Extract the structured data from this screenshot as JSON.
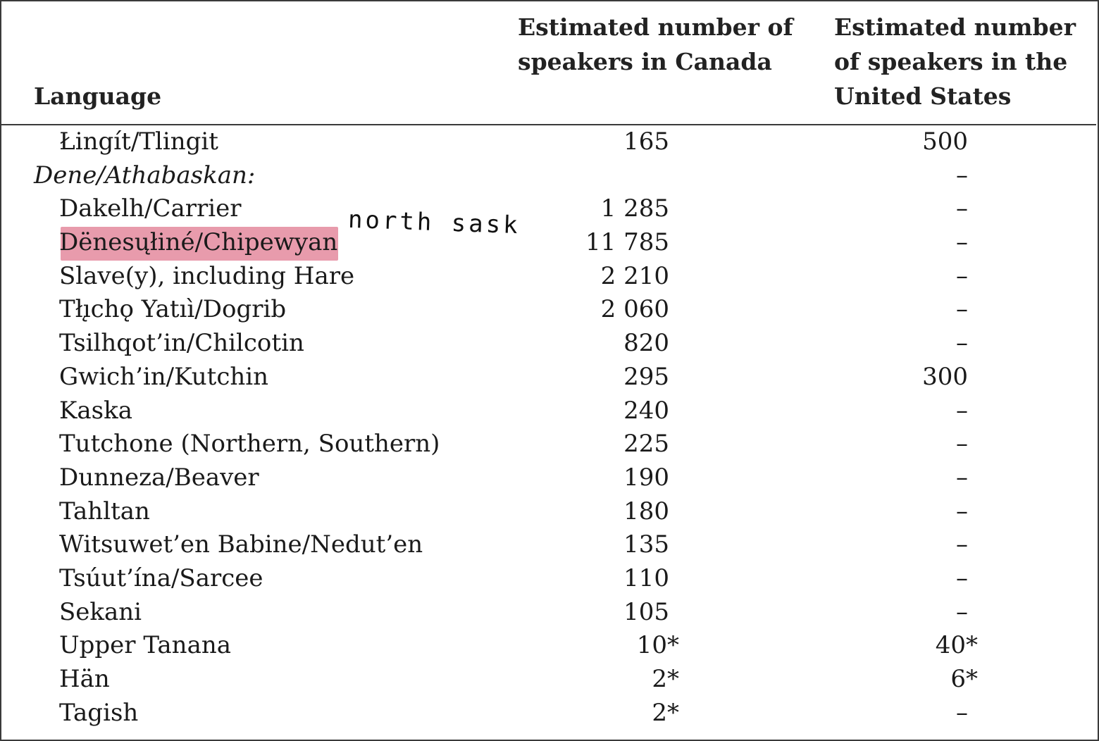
{
  "headers": {
    "language": "Language",
    "canada": "Estimated number of speakers in Canada",
    "us": "Estimated number of speakers in the United States"
  },
  "rows": [
    {
      "language": "Łingít/Tlingit",
      "canada": "165",
      "us": "500",
      "group": false
    },
    {
      "language": "Dene/Athabaskan:",
      "canada": "",
      "us": "–",
      "group": true
    },
    {
      "language": "Dakelh/Carrier",
      "canada": "1 285",
      "us": "–",
      "group": false
    },
    {
      "language": "Dënesųłiné/Chipewyan",
      "canada": "11 785",
      "us": "–",
      "group": false
    },
    {
      "language": "Slave(y), including Hare",
      "canada": "2 210",
      "us": "–",
      "group": false
    },
    {
      "language": "Tłı̨chǫ Yatıì/Dogrib",
      "canada": "2 060",
      "us": "–",
      "group": false
    },
    {
      "language": "Tsilhqot’in/Chilcotin",
      "canada": "820",
      "us": "–",
      "group": false
    },
    {
      "language": "Gwich’in/Kutchin",
      "canada": "295",
      "us": "300",
      "group": false
    },
    {
      "language": "Kaska",
      "canada": "240",
      "us": "–",
      "group": false
    },
    {
      "language": "Tutchone (Northern, Southern)",
      "canada": "225",
      "us": "–",
      "group": false
    },
    {
      "language": "Dunneza/Beaver",
      "canada": "190",
      "us": "–",
      "group": false
    },
    {
      "language": "Tahltan",
      "canada": "180",
      "us": "–",
      "group": false
    },
    {
      "language": "Witsuwet’en Babine/Nedut’en",
      "canada": "135",
      "us": "–",
      "group": false
    },
    {
      "language": "Tsúut’ína/Sarcee",
      "canada": "110",
      "us": "–",
      "group": false
    },
    {
      "language": "Sekani",
      "canada": "105",
      "us": "–",
      "group": false
    },
    {
      "language": "Upper Tanana",
      "canada": "10*",
      "us": "40*",
      "group": false
    },
    {
      "language": "Hän",
      "canada": "2*",
      "us": "6*",
      "group": false
    },
    {
      "language": "Tagish",
      "canada": "2*",
      "us": "–",
      "group": false
    }
  ],
  "annotation": {
    "text": "north sask",
    "highlight_color": "#e48a9e"
  }
}
